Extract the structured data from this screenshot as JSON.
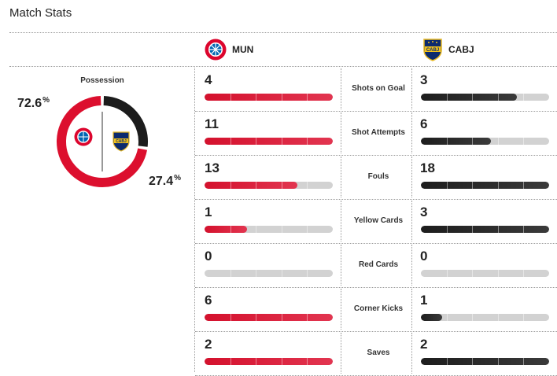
{
  "header": {
    "title": "Match Stats"
  },
  "teams": {
    "home": {
      "abbr": "MUN",
      "crest": "bayern-munich-crest",
      "color": "#dc0f2e"
    },
    "away": {
      "abbr": "CABJ",
      "crest": "boca-juniors-crest",
      "color": "#1c1c1c"
    }
  },
  "possession": {
    "label": "Possession",
    "home_pct": "72.6",
    "away_pct": "27.4",
    "home_value": 72.6,
    "away_value": 27.4,
    "unit": "%"
  },
  "stats": [
    {
      "label": "Shots on Goal",
      "home": "4",
      "away": "3",
      "home_fill": 1.0,
      "away_fill": 0.75
    },
    {
      "label": "Shot Attempts",
      "home": "11",
      "away": "6",
      "home_fill": 1.0,
      "away_fill": 0.545
    },
    {
      "label": "Fouls",
      "home": "13",
      "away": "18",
      "home_fill": 0.722,
      "away_fill": 1.0
    },
    {
      "label": "Yellow Cards",
      "home": "1",
      "away": "3",
      "home_fill": 0.333,
      "away_fill": 1.0
    },
    {
      "label": "Red Cards",
      "home": "0",
      "away": "0",
      "home_fill": 0,
      "away_fill": 0
    },
    {
      "label": "Corner Kicks",
      "home": "6",
      "away": "1",
      "home_fill": 1.0,
      "away_fill": 0.167
    },
    {
      "label": "Saves",
      "home": "2",
      "away": "2",
      "home_fill": 1.0,
      "away_fill": 1.0
    }
  ]
}
